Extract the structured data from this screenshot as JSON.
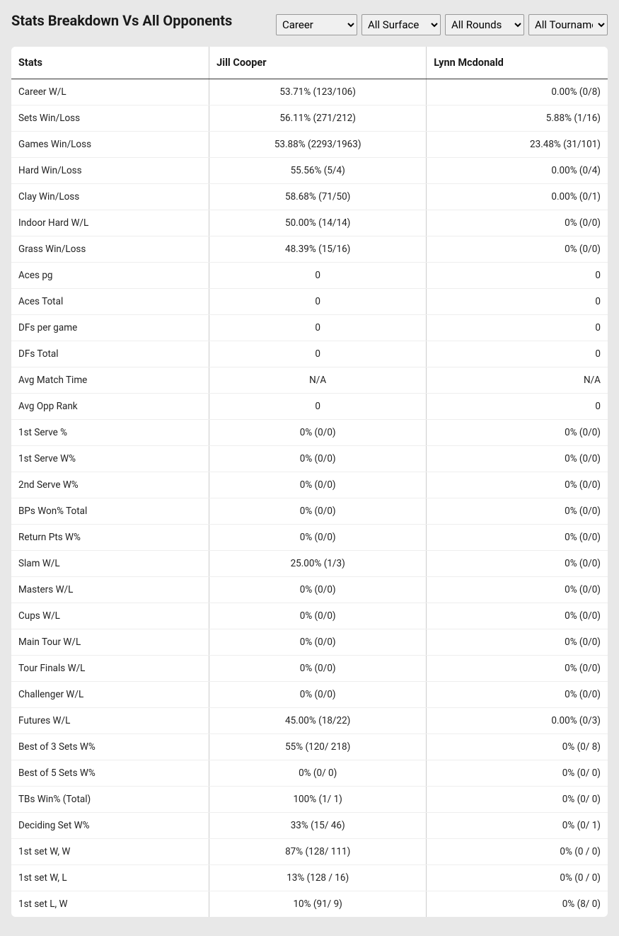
{
  "header": {
    "title": "Stats Breakdown Vs All Opponents"
  },
  "filters": {
    "period": {
      "selected": "Career",
      "options": [
        "Career"
      ]
    },
    "surface": {
      "selected": "All Surface",
      "options": [
        "All Surface"
      ]
    },
    "rounds": {
      "selected": "All Rounds",
      "options": [
        "All Rounds"
      ]
    },
    "tournaments": {
      "selected": "All Tournaments",
      "options": [
        "All Tournaments"
      ]
    }
  },
  "table": {
    "columns": [
      "Stats",
      "Jill Cooper",
      "Lynn Mcdonald"
    ],
    "rows": [
      [
        "Career W/L",
        "53.71% (123/106)",
        "0.00% (0/8)"
      ],
      [
        "Sets Win/Loss",
        "56.11% (271/212)",
        "5.88% (1/16)"
      ],
      [
        "Games Win/Loss",
        "53.88% (2293/1963)",
        "23.48% (31/101)"
      ],
      [
        "Hard Win/Loss",
        "55.56% (5/4)",
        "0.00% (0/4)"
      ],
      [
        "Clay Win/Loss",
        "58.68% (71/50)",
        "0.00% (0/1)"
      ],
      [
        "Indoor Hard W/L",
        "50.00% (14/14)",
        "0% (0/0)"
      ],
      [
        "Grass Win/Loss",
        "48.39% (15/16)",
        "0% (0/0)"
      ],
      [
        "Aces pg",
        "0",
        "0"
      ],
      [
        "Aces Total",
        "0",
        "0"
      ],
      [
        "DFs per game",
        "0",
        "0"
      ],
      [
        "DFs Total",
        "0",
        "0"
      ],
      [
        "Avg Match Time",
        "N/A",
        "N/A"
      ],
      [
        "Avg Opp Rank",
        "0",
        "0"
      ],
      [
        "1st Serve %",
        "0% (0/0)",
        "0% (0/0)"
      ],
      [
        "1st Serve W%",
        "0% (0/0)",
        "0% (0/0)"
      ],
      [
        "2nd Serve W%",
        "0% (0/0)",
        "0% (0/0)"
      ],
      [
        "BPs Won% Total",
        "0% (0/0)",
        "0% (0/0)"
      ],
      [
        "Return Pts W%",
        "0% (0/0)",
        "0% (0/0)"
      ],
      [
        "Slam W/L",
        "25.00% (1/3)",
        "0% (0/0)"
      ],
      [
        "Masters W/L",
        "0% (0/0)",
        "0% (0/0)"
      ],
      [
        "Cups W/L",
        "0% (0/0)",
        "0% (0/0)"
      ],
      [
        "Main Tour W/L",
        "0% (0/0)",
        "0% (0/0)"
      ],
      [
        "Tour Finals W/L",
        "0% (0/0)",
        "0% (0/0)"
      ],
      [
        "Challenger W/L",
        "0% (0/0)",
        "0% (0/0)"
      ],
      [
        "Futures W/L",
        "45.00% (18/22)",
        "0.00% (0/3)"
      ],
      [
        "Best of 3 Sets W%",
        "55% (120/ 218)",
        "0% (0/ 8)"
      ],
      [
        "Best of 5 Sets W%",
        "0% (0/ 0)",
        "0% (0/ 0)"
      ],
      [
        "TBs Win% (Total)",
        "100% (1/ 1)",
        "0% (0/ 0)"
      ],
      [
        "Deciding Set W%",
        "33% (15/ 46)",
        "0% (0/ 1)"
      ],
      [
        "1st set W, W",
        "87% (128/ 111)",
        "0% (0 / 0)"
      ],
      [
        "1st set W, L",
        "13% (128 / 16)",
        "0% (0 / 0)"
      ],
      [
        "1st set L, W",
        "10% (91/ 9)",
        "0% (8/ 0)"
      ]
    ]
  },
  "colors": {
    "page_background": "#e8e8e8",
    "table_background": "#ffffff",
    "text_primary": "#1a1a1a",
    "border_light": "#eee",
    "border_medium": "#ccc",
    "border_dark": "#333"
  }
}
